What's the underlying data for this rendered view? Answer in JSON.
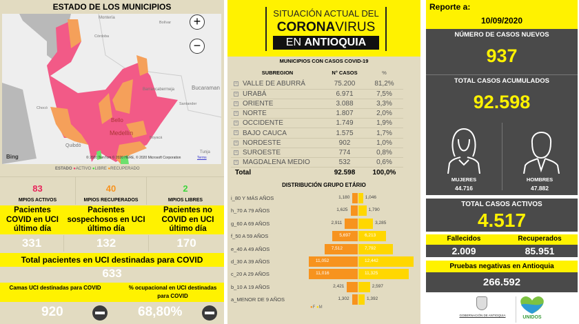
{
  "map": {
    "title": "ESTADO DE LOS MUNICIPIOS",
    "places": [
      "Montería",
      "Bolívar",
      "Córdoba",
      "Barrancabermeja",
      "Bucaraman",
      "Santander",
      "Chocó",
      "Antioquia",
      "Bello",
      "Medellín",
      "Boyacá",
      "Quibdó",
      "Tunja",
      "Socorro",
      "Caldas",
      "No San"
    ],
    "attribution": "© 2020 TomTom © 2020 HERE, © 2020 Microsoft Corporation",
    "terms": "Terms",
    "provider": "Bing",
    "legend": {
      "title": "ESTADO",
      "items": [
        {
          "label": "ACTIVO",
          "color": "#f0386b"
        },
        {
          "label": "LIBRE",
          "color": "#3ce03c"
        },
        {
          "label": "RECUPERADO",
          "color": "#f7931e"
        }
      ]
    }
  },
  "municipios": [
    {
      "value": "83",
      "label": "MPIOS ACTIVOS",
      "color": "#e8245a"
    },
    {
      "value": "40",
      "label": "MPIOS RECUPERADOS",
      "color": "#f7931e"
    },
    {
      "value": "2",
      "label": "MPIOS LIBRES",
      "color": "#3cd63c"
    }
  ],
  "uci": {
    "headers": [
      "Pacientes COVID en UCI último día",
      "Pacientes sospechosos en UCI último día",
      "Pacientes no COVID en UCI último día"
    ],
    "values": [
      "331",
      "132",
      "170"
    ],
    "total_label": "Total pacientes en UCI destinadas para COVID",
    "total_value": "633",
    "camas_label": "Camas UCI destinadas para COVID",
    "camas_value": "920",
    "ocup_label": "% ocupacional en UCI destinadas para COVID",
    "ocup_value": "68,80%"
  },
  "banner": {
    "line1": "SITUACIÓN ACTUAL DEL",
    "line2a": "CORONA",
    "line2b": "VIRUS",
    "line3a": "EN ",
    "line3b": "ANTIOQUIA"
  },
  "table": {
    "title": "MUNICIPIOS CON CASOS COVID-19",
    "headers": [
      "SUBREGION",
      "N° CASOS",
      "%"
    ],
    "rows": [
      [
        "VALLE DE ABURRÁ",
        "75.200",
        "81,2%"
      ],
      [
        "URABÁ",
        "6.971",
        "7,5%"
      ],
      [
        "ORIENTE",
        "3.088",
        "3,3%"
      ],
      [
        "NORTE",
        "1.807",
        "2,0%"
      ],
      [
        "OCCIDENTE",
        "1.749",
        "1,9%"
      ],
      [
        "BAJO CAUCA",
        "1.575",
        "1,7%"
      ],
      [
        "NORDESTE",
        "902",
        "1,0%"
      ],
      [
        "SUROESTE",
        "774",
        "0,8%"
      ],
      [
        "MAGDALENA MEDIO",
        "532",
        "0,6%"
      ]
    ],
    "total": [
      "Total",
      "92.598",
      "100,0%"
    ]
  },
  "chart_data": {
    "type": "bar",
    "orientation": "horizontal-pyramid",
    "title": "DISTRIBUCIÓN GRUPO ETÁRIO",
    "categories": [
      "i_80 Y MÁS AÑOS",
      "h_70 A 79 AÑOS",
      "g_60 A 69 AÑOS",
      "f_50 A 59 AÑOS",
      "e_40 A 49 AÑOS",
      "d_30 A 39 AÑOS",
      "c_20 A 29 AÑOS",
      "b_10 A 19 AÑOS",
      "a_MENOR DE 9 AÑOS"
    ],
    "series": [
      {
        "name": "F",
        "color": "#f7931e",
        "values": [
          1180,
          1625,
          2911,
          5697,
          7512,
          11052,
          11016,
          2421,
          1302
        ],
        "labels": [
          "1,180",
          "1,625",
          "2,911",
          "5,697",
          "7,512",
          "11,052",
          "11,016",
          "2,421",
          "1,302"
        ]
      },
      {
        "name": "M",
        "color": "#ffd700",
        "values": [
          1046,
          1790,
          3285,
          6213,
          7792,
          12442,
          11325,
          2597,
          1392
        ],
        "labels": [
          "1,046",
          "1,790",
          "3,285",
          "6,213",
          "7,792",
          "12,442",
          "11,325",
          "2,597",
          "1,392"
        ]
      }
    ],
    "legend": "bottom"
  },
  "report": {
    "label": "Reporte a:",
    "date": "10/09/2020",
    "new_label": "NÚMERO DE CASOS NUEVOS",
    "new_value": "937",
    "total_label": "TOTAL CASOS ACUMULADOS",
    "total_value": "92.598",
    "women_label": "MUJERES",
    "women_value": "44.716",
    "men_label": "HOMBRES",
    "men_value": "47.882",
    "active_label": "TOTAL CASOS ACTIVOS",
    "active_value": "4.517",
    "deaths_label": "Fallecidos",
    "deaths_value": "2.009",
    "recovered_label": "Recuperados",
    "recovered_value": "85.951",
    "neg_label": "Pruebas negativas en Antioquia",
    "neg_value": "266.592"
  },
  "logos": {
    "gob": "GOBERNACIÓN DE ANTIOQUIA",
    "unidos": "UNIDOS"
  }
}
